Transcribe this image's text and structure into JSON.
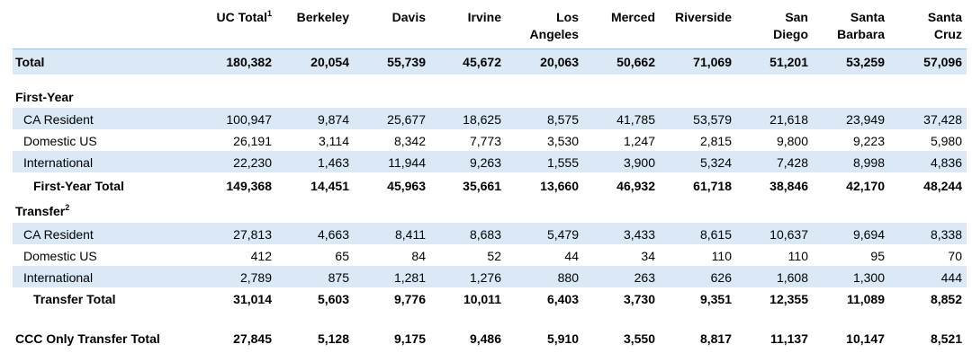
{
  "headers": [
    {
      "key": "uc_total",
      "line1": "",
      "line2": "UC Total",
      "sup": "1"
    },
    {
      "key": "berkeley",
      "line1": "",
      "line2": "Berkeley",
      "sup": ""
    },
    {
      "key": "davis",
      "line1": "",
      "line2": "Davis",
      "sup": ""
    },
    {
      "key": "irvine",
      "line1": "",
      "line2": "Irvine",
      "sup": ""
    },
    {
      "key": "los_angeles",
      "line1": "Los",
      "line2": "Angeles",
      "sup": ""
    },
    {
      "key": "merced",
      "line1": "",
      "line2": "Merced",
      "sup": ""
    },
    {
      "key": "riverside",
      "line1": "",
      "line2": "Riverside",
      "sup": ""
    },
    {
      "key": "san_diego",
      "line1": "San",
      "line2": "Diego",
      "sup": ""
    },
    {
      "key": "santa_barbara",
      "line1": "Santa",
      "line2": "Barbara",
      "sup": ""
    },
    {
      "key": "santa_cruz",
      "line1": "Santa",
      "line2": "Cruz",
      "sup": ""
    }
  ],
  "rows": [
    {
      "id": "total",
      "label": "Total",
      "sup": "",
      "values": [
        "180,382",
        "20,054",
        "55,739",
        "45,672",
        "20,063",
        "50,662",
        "71,069",
        "51,201",
        "53,259",
        "57,096"
      ]
    },
    {
      "id": "first_year_heading",
      "label": "First-Year",
      "sup": "",
      "values": []
    },
    {
      "id": "fy_ca",
      "label": "CA Resident",
      "sup": "",
      "values": [
        "100,947",
        "9,874",
        "25,677",
        "18,625",
        "8,575",
        "41,785",
        "53,579",
        "21,618",
        "23,949",
        "37,428"
      ]
    },
    {
      "id": "fy_dom",
      "label": "Domestic US",
      "sup": "",
      "values": [
        "26,191",
        "3,114",
        "8,342",
        "7,773",
        "3,530",
        "1,247",
        "2,815",
        "9,800",
        "9,223",
        "5,980"
      ]
    },
    {
      "id": "fy_int",
      "label": "International",
      "sup": "",
      "values": [
        "22,230",
        "1,463",
        "11,944",
        "9,263",
        "1,555",
        "3,900",
        "5,324",
        "7,428",
        "8,998",
        "4,836"
      ]
    },
    {
      "id": "fy_total",
      "label": "First-Year Total",
      "sup": "",
      "values": [
        "149,368",
        "14,451",
        "45,963",
        "35,661",
        "13,660",
        "46,932",
        "61,718",
        "38,846",
        "42,170",
        "48,244"
      ]
    },
    {
      "id": "transfer_heading",
      "label": "Transfer",
      "sup": "2",
      "values": []
    },
    {
      "id": "tr_ca",
      "label": "CA Resident",
      "sup": "",
      "values": [
        "27,813",
        "4,663",
        "8,411",
        "8,683",
        "5,479",
        "3,433",
        "8,615",
        "10,637",
        "9,694",
        "8,338"
      ]
    },
    {
      "id": "tr_dom",
      "label": "Domestic US",
      "sup": "",
      "values": [
        "412",
        "65",
        "84",
        "52",
        "44",
        "34",
        "110",
        "110",
        "95",
        "70"
      ]
    },
    {
      "id": "tr_int",
      "label": "International",
      "sup": "",
      "values": [
        "2,789",
        "875",
        "1,281",
        "1,276",
        "880",
        "263",
        "626",
        "1,608",
        "1,300",
        "444"
      ]
    },
    {
      "id": "tr_total",
      "label": "Transfer Total",
      "sup": "",
      "values": [
        "31,014",
        "5,603",
        "9,776",
        "10,011",
        "6,403",
        "3,730",
        "9,351",
        "12,355",
        "11,089",
        "8,852"
      ]
    },
    {
      "id": "ccc_total",
      "label": "CCC Only Transfer Total",
      "sup": "",
      "values": [
        "27,845",
        "5,128",
        "9,175",
        "9,486",
        "5,910",
        "3,550",
        "8,817",
        "11,137",
        "10,147",
        "8,521"
      ]
    }
  ]
}
